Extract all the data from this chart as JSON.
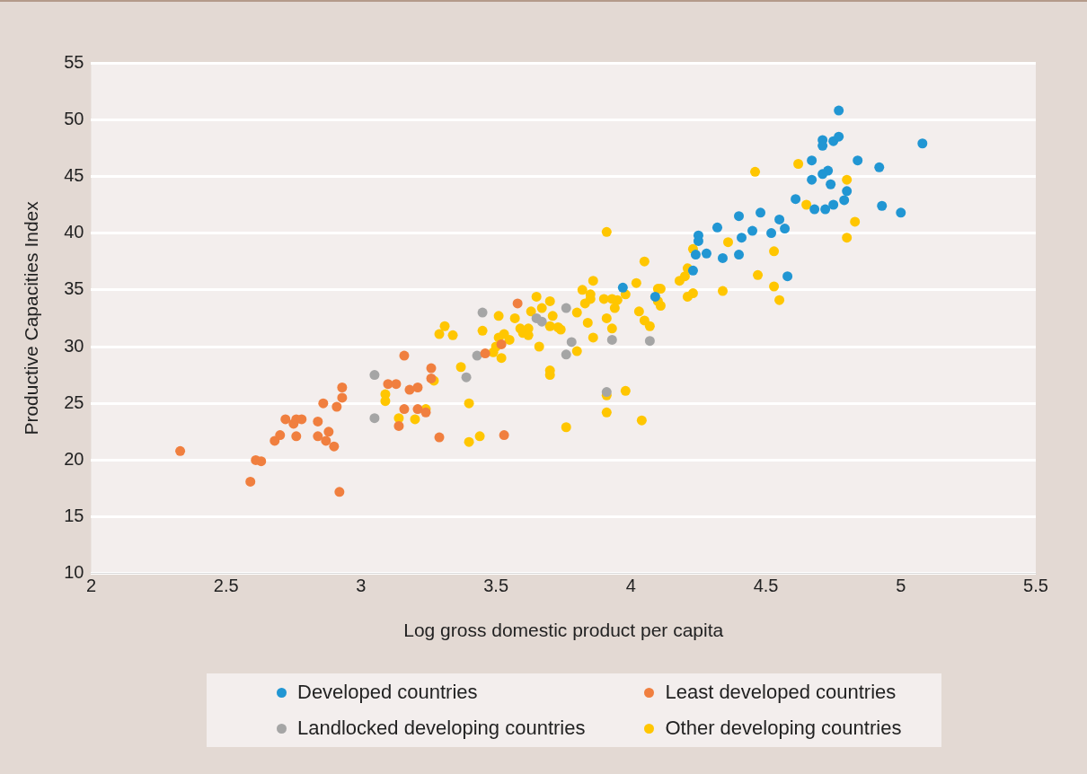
{
  "chart_data": {
    "type": "scatter",
    "xlabel": "Log gross domestic product per capita",
    "ylabel": "Productive Capacities Index",
    "xlim": [
      2,
      5.5
    ],
    "xticks": [
      2,
      2.5,
      3,
      3.5,
      4,
      4.5,
      5,
      5.5
    ],
    "ylim": [
      10,
      55
    ],
    "yticks": [
      10,
      15,
      20,
      25,
      30,
      35,
      40,
      45,
      50,
      55
    ],
    "grid": "y",
    "legend": "bottom",
    "marker": "circle",
    "series": [
      {
        "name": "Developed countries",
        "color": "#2196d3",
        "x": [
          4.77,
          5.08,
          4.71,
          4.75,
          4.77,
          4.71,
          4.84,
          4.67,
          4.92,
          4.73,
          4.71,
          4.67,
          4.8,
          4.74,
          4.61,
          4.75,
          4.79,
          4.68,
          4.72,
          4.93,
          5.0,
          4.48,
          4.55,
          4.4,
          4.45,
          4.52,
          4.57,
          4.32,
          4.41,
          4.25,
          4.25,
          4.28,
          4.24,
          4.34,
          4.4,
          4.58,
          4.23,
          3.97,
          4.09
        ],
        "values": [
          50.8,
          47.9,
          48.2,
          48.1,
          48.5,
          47.7,
          46.4,
          46.4,
          45.8,
          45.5,
          45.2,
          44.7,
          43.7,
          44.3,
          43.0,
          42.5,
          42.9,
          42.1,
          42.1,
          42.4,
          41.8,
          41.8,
          41.2,
          41.5,
          40.2,
          40.0,
          40.4,
          40.5,
          39.6,
          39.8,
          39.3,
          38.2,
          38.1,
          37.8,
          38.1,
          36.2,
          36.7,
          35.2,
          34.4
        ]
      },
      {
        "name": "Least developed countries",
        "color": "#f07f3f",
        "x": [
          2.33,
          2.59,
          2.61,
          2.63,
          2.92,
          2.68,
          2.7,
          2.72,
          2.75,
          2.76,
          2.78,
          2.76,
          2.84,
          2.87,
          2.84,
          2.88,
          2.9,
          2.91,
          2.86,
          2.93,
          2.93,
          3.16,
          3.1,
          3.13,
          3.18,
          3.21,
          3.26,
          3.26,
          3.16,
          3.21,
          3.24,
          3.14,
          3.29,
          3.58,
          3.46,
          3.52,
          3.53
        ],
        "values": [
          20.8,
          18.1,
          20.0,
          19.9,
          17.2,
          21.7,
          22.2,
          23.6,
          23.2,
          23.6,
          23.6,
          22.1,
          23.4,
          21.7,
          22.1,
          22.5,
          21.2,
          24.7,
          25.0,
          25.5,
          26.4,
          29.2,
          26.7,
          26.7,
          26.2,
          26.4,
          28.1,
          27.2,
          24.5,
          24.5,
          24.2,
          23.0,
          22.0,
          33.8,
          29.4,
          30.2,
          22.2
        ]
      },
      {
        "name": "Landlocked developing countries",
        "color": "#a5a5a5",
        "x": [
          3.05,
          3.05,
          3.45,
          3.39,
          3.43,
          3.65,
          3.67,
          3.76,
          3.78,
          3.76,
          3.93,
          3.91,
          4.07
        ],
        "values": [
          27.5,
          23.7,
          33.0,
          27.3,
          29.2,
          32.5,
          32.2,
          33.4,
          30.4,
          29.3,
          30.6,
          26.0,
          30.5
        ]
      },
      {
        "name": "Other developing countries",
        "color": "#ffc600",
        "x": [
          3.09,
          3.09,
          3.14,
          3.2,
          3.24,
          3.27,
          3.29,
          3.31,
          3.34,
          3.37,
          3.4,
          3.4,
          3.44,
          3.45,
          3.51,
          3.49,
          3.5,
          3.52,
          3.51,
          3.53,
          3.55,
          3.57,
          3.59,
          3.62,
          3.6,
          3.62,
          3.63,
          3.65,
          3.67,
          3.7,
          3.71,
          3.7,
          3.73,
          3.74,
          3.66,
          3.7,
          3.7,
          3.76,
          3.8,
          3.82,
          3.86,
          3.83,
          3.84,
          3.85,
          3.85,
          3.8,
          3.86,
          3.9,
          3.93,
          3.95,
          3.94,
          3.91,
          3.93,
          3.98,
          4.02,
          4.03,
          3.91,
          3.91,
          3.98,
          3.91,
          4.05,
          4.05,
          4.07,
          4.04,
          4.1,
          4.11,
          4.1,
          4.11,
          4.18,
          4.2,
          4.21,
          4.23,
          4.21,
          4.23,
          4.36,
          4.34,
          4.46,
          4.62,
          4.65,
          4.8,
          4.83,
          4.8,
          4.53,
          4.47,
          4.53,
          4.55
        ],
        "values": [
          25.8,
          25.2,
          23.7,
          23.6,
          24.5,
          27.0,
          31.1,
          31.8,
          31.0,
          28.2,
          25.0,
          21.6,
          22.1,
          31.4,
          32.7,
          29.5,
          30.0,
          29.0,
          30.8,
          31.1,
          30.6,
          32.5,
          31.6,
          31.6,
          31.2,
          31.0,
          33.1,
          34.4,
          33.4,
          34.0,
          32.7,
          31.8,
          31.7,
          31.5,
          30.0,
          27.9,
          27.5,
          22.9,
          33.0,
          35.0,
          35.8,
          33.8,
          32.1,
          34.6,
          34.2,
          29.6,
          30.8,
          34.2,
          34.2,
          34.1,
          33.4,
          32.5,
          31.6,
          34.6,
          35.6,
          33.1,
          25.7,
          24.2,
          26.1,
          40.1,
          37.5,
          32.3,
          31.8,
          23.5,
          35.1,
          35.1,
          34.0,
          33.6,
          35.8,
          36.2,
          36.9,
          38.6,
          34.4,
          34.7,
          39.2,
          34.9,
          45.4,
          46.1,
          42.5,
          44.7,
          41.0,
          39.6,
          38.4,
          36.3,
          35.3,
          34.1
        ]
      }
    ]
  }
}
